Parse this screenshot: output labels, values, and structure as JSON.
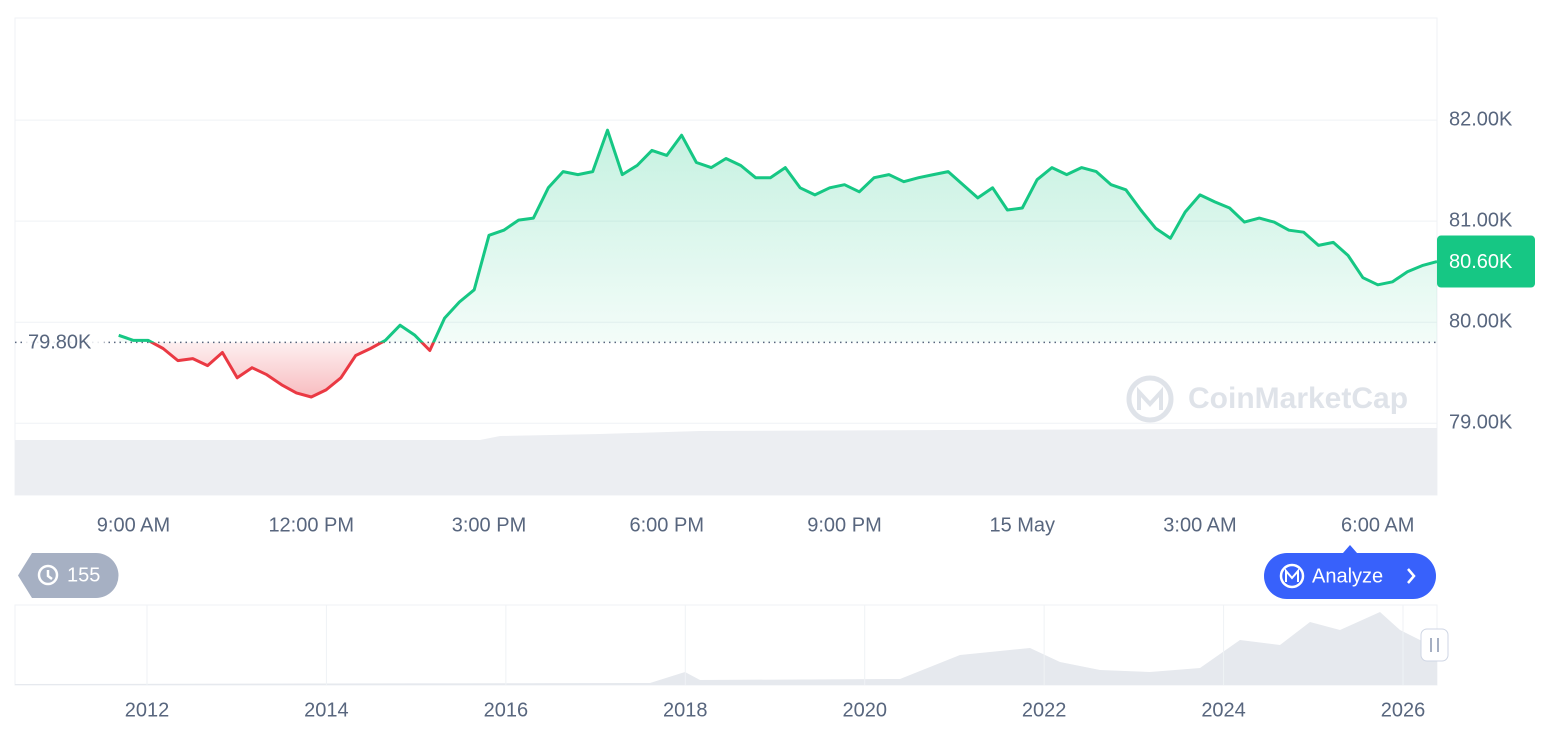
{
  "chart_data": {
    "type": "line",
    "categories": [
      null,
      null,
      null,
      null,
      null,
      null,
      null,
      null,
      "9:00 AM",
      null,
      null,
      null,
      null,
      null,
      null,
      null,
      null,
      null,
      null,
      null,
      "12:00 PM",
      null,
      null,
      null,
      null,
      null,
      null,
      null,
      null,
      null,
      null,
      null,
      "3:00 PM",
      null,
      null,
      null,
      null,
      null,
      null,
      null,
      null,
      null,
      null,
      null,
      "6:00 PM",
      null,
      null,
      null,
      null,
      null,
      null,
      null,
      null,
      null,
      null,
      null,
      "9:00 PM",
      null,
      null,
      null,
      null,
      null,
      null,
      null,
      null,
      null,
      null,
      null,
      "15 May",
      null,
      null,
      null,
      null,
      null,
      null,
      null,
      null,
      null,
      null,
      null,
      "3:00 AM",
      null,
      null,
      null,
      null,
      null,
      null,
      null,
      null,
      null,
      null,
      null,
      "6:00 AM",
      null,
      null,
      null,
      null
    ],
    "values": [
      null,
      null,
      null,
      null,
      null,
      null,
      null,
      79870,
      79820,
      79820,
      79740,
      79620,
      79640,
      79570,
      79700,
      79450,
      79550,
      79480,
      79380,
      79300,
      79260,
      79330,
      79450,
      79670,
      79740,
      79820,
      79970,
      79870,
      79720,
      80040,
      80200,
      80320,
      80860,
      80910,
      81010,
      81030,
      81330,
      81490,
      81460,
      81490,
      81900,
      81460,
      81550,
      81700,
      81650,
      81850,
      81580,
      81530,
      81620,
      81550,
      81430,
      81430,
      81530,
      81330,
      81260,
      81330,
      81360,
      81290,
      81430,
      81460,
      81390,
      81430,
      81460,
      81490,
      81360,
      81230,
      81330,
      81110,
      81130,
      81410,
      81530,
      81460,
      81530,
      81490,
      81360,
      81310,
      81110,
      80930,
      80830,
      81090,
      81260,
      81190,
      81130,
      80990,
      81030,
      80990,
      80910,
      80890,
      80760,
      80790,
      80660,
      80440,
      80370,
      80400,
      80500,
      80560,
      80600
    ],
    "up_color": "#16c784",
    "down_color": "#ea3943",
    "baseline": {
      "value": 79800,
      "label": "79.80K"
    },
    "last_price": {
      "value": 80600,
      "label": "80.60K"
    },
    "ylim": [
      78290,
      83010
    ],
    "yticks": [
      {
        "value": 79000,
        "label": "79.00K"
      },
      {
        "value": 80000,
        "label": "80.00K"
      },
      {
        "value": 81000,
        "label": "81.00K"
      },
      {
        "value": 82000,
        "label": "82.00K"
      }
    ],
    "grid": true
  },
  "navigator": {
    "xticks": [
      "2012",
      "2014",
      "2016",
      "2018",
      "2020",
      "2022",
      "2024",
      "2026"
    ]
  },
  "ui": {
    "history_badge": "155",
    "analyze_button": "Analyze",
    "watermark": "CoinMarketCap"
  }
}
